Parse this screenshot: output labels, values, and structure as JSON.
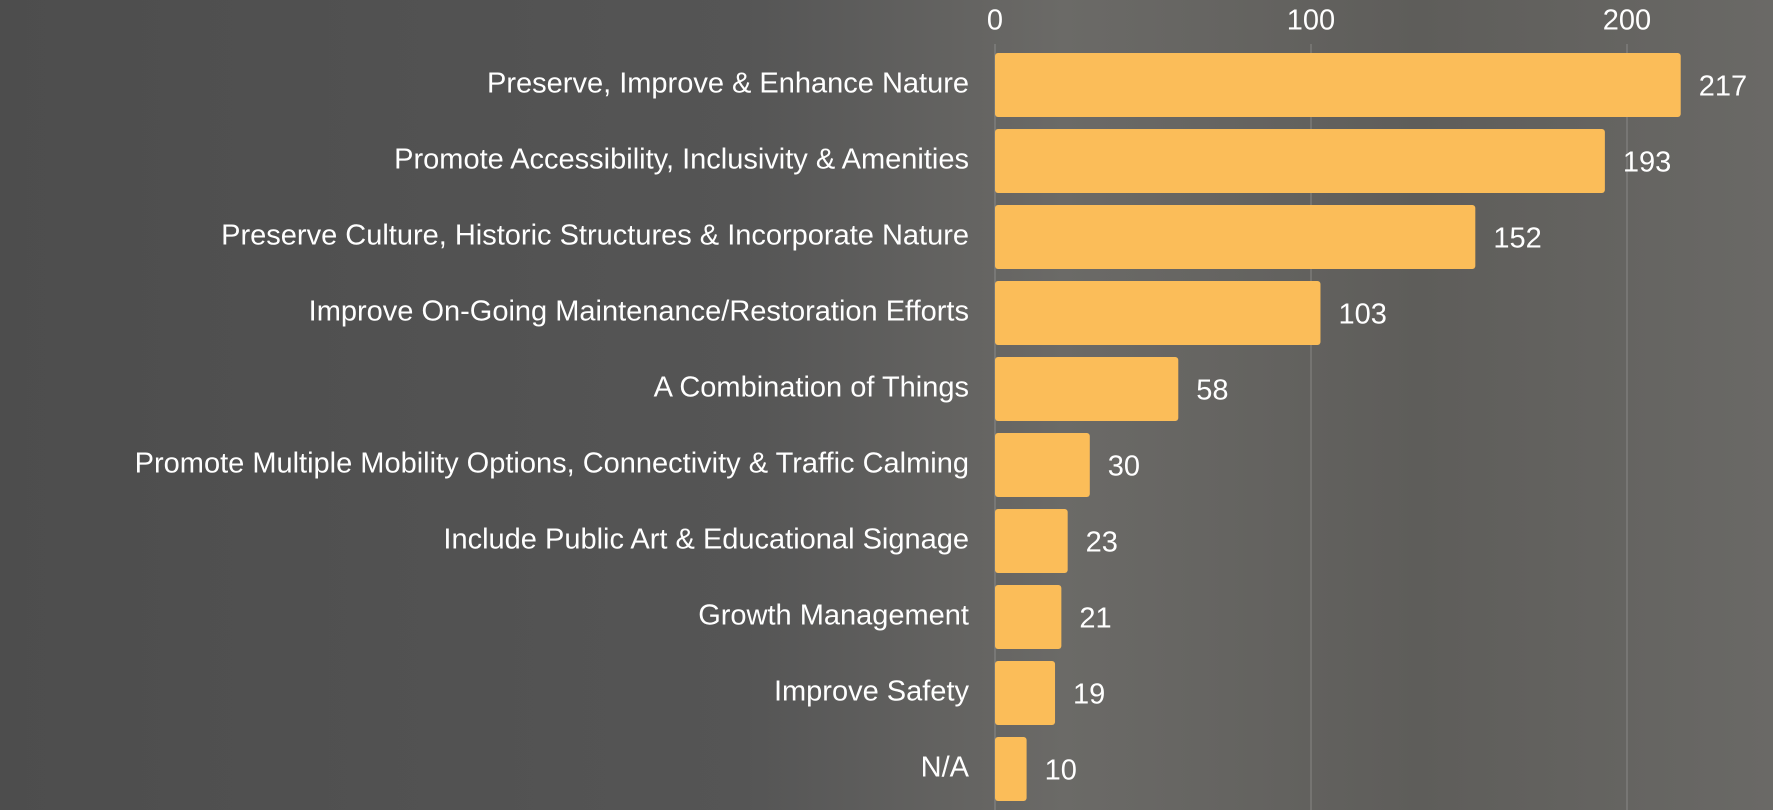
{
  "chart_data": {
    "type": "bar",
    "orientation": "horizontal",
    "categories": [
      "Preserve, Improve & Enhance Nature",
      "Promote Accessibility, Inclusivity & Amenities",
      "Preserve Culture, Historic Structures & Incorporate Nature",
      "Improve On-Going Maintenance/Restoration Efforts",
      "A Combination of Things",
      "Promote Multiple Mobility Options, Connectivity & Traffic Calming",
      "Include Public Art & Educational Signage",
      "Growth Management",
      "Improve Safety",
      "N/A"
    ],
    "values": [
      217,
      193,
      152,
      103,
      58,
      30,
      23,
      21,
      19,
      10
    ],
    "color": "#fbbd59",
    "xlim": [
      0,
      245
    ],
    "xticks": [
      0,
      100,
      200
    ],
    "grid": true
  }
}
